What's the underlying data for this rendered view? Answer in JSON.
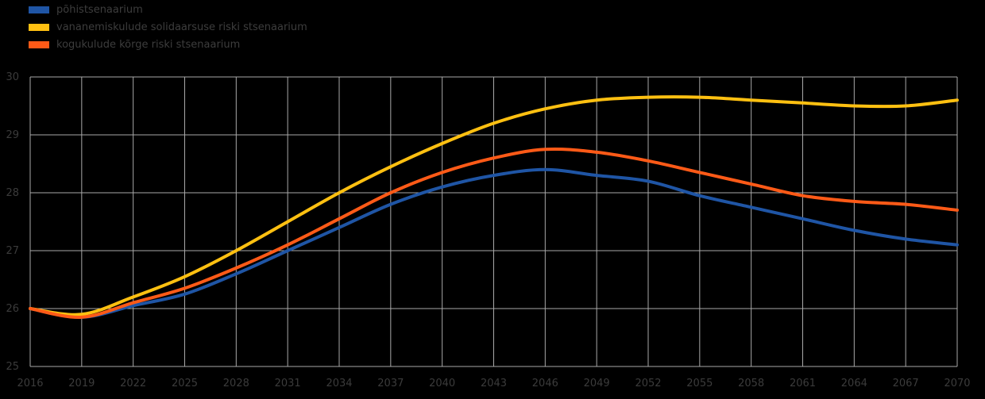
{
  "chart_data": {
    "type": "line",
    "x": [
      2016,
      2019,
      2022,
      2025,
      2028,
      2031,
      2034,
      2037,
      2040,
      2043,
      2046,
      2049,
      2052,
      2055,
      2058,
      2061,
      2064,
      2067,
      2070
    ],
    "series": [
      {
        "name": "põhistsenaarium",
        "color": "#1f55a5",
        "values": [
          26.0,
          25.85,
          26.05,
          26.25,
          26.6,
          27.0,
          27.4,
          27.8,
          28.1,
          28.3,
          28.4,
          28.3,
          28.2,
          27.95,
          27.75,
          27.55,
          27.35,
          27.2,
          27.1
        ]
      },
      {
        "name": "vananemiskulude solidaarsuse riski stsenaarium",
        "color": "#ffc011",
        "values": [
          26.0,
          25.9,
          26.2,
          26.55,
          27.0,
          27.5,
          28.0,
          28.45,
          28.85,
          29.2,
          29.45,
          29.6,
          29.65,
          29.65,
          29.6,
          29.55,
          29.5,
          29.5,
          29.6
        ]
      },
      {
        "name": "kogukulude kõrge riski stsenaarium",
        "color": "#ff5a17",
        "values": [
          26.0,
          25.85,
          26.1,
          26.35,
          26.7,
          27.1,
          27.55,
          28.0,
          28.35,
          28.6,
          28.75,
          28.7,
          28.55,
          28.35,
          28.15,
          27.95,
          27.85,
          27.8,
          27.7
        ]
      }
    ],
    "title": "",
    "xlabel": "",
    "ylabel": "",
    "ylim": [
      25,
      30
    ],
    "yticks": [
      25,
      26,
      27,
      28,
      29,
      30
    ],
    "xticks": [
      2016,
      2019,
      2022,
      2025,
      2028,
      2031,
      2034,
      2037,
      2040,
      2043,
      2046,
      2049,
      2052,
      2055,
      2058,
      2061,
      2064,
      2067,
      2070
    ],
    "grid": true,
    "legend_position": "top-left",
    "colors": {
      "background": "#000000",
      "grid": "#a9a9a9",
      "tick_text": "#3b3b3b",
      "legend_text": "#3d3d3d"
    }
  }
}
